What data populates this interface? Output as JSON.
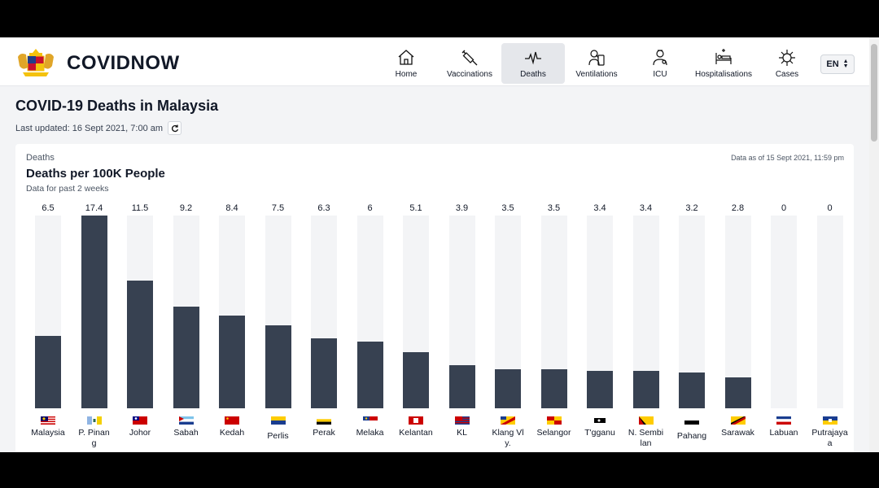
{
  "app": {
    "brand": "COVIDNOW",
    "language": "EN"
  },
  "nav": [
    {
      "label": "Home",
      "icon": "home-icon",
      "active": false
    },
    {
      "label": "Vaccinations",
      "icon": "syringe-icon",
      "active": false
    },
    {
      "label": "Deaths",
      "icon": "pulse-icon",
      "active": true
    },
    {
      "label": "Ventilations",
      "icon": "ventilator-icon",
      "active": false
    },
    {
      "label": "ICU",
      "icon": "icu-icon",
      "active": false
    },
    {
      "label": "Hospitalisations",
      "icon": "hospital-bed-icon",
      "active": false
    },
    {
      "label": "Cases",
      "icon": "virus-icon",
      "active": false
    }
  ],
  "page": {
    "title": "COVID-19 Deaths in Malaysia",
    "last_updated": "Last updated: 16 Sept 2021, 7:00 am"
  },
  "card": {
    "subtitle": "Deaths",
    "title": "Deaths per 100K People",
    "note": "Data for past 2 weeks",
    "as_of": "Data as of 15 Sept 2021, 11:59 pm"
  },
  "chart_data": {
    "type": "bar",
    "categories": [
      "Malaysia",
      "P. Pinang",
      "Johor",
      "Sabah",
      "Kedah",
      "Perlis",
      "Perak",
      "Melaka",
      "Kelantan",
      "KL",
      "Klang Valley",
      "Selangor",
      "T'ganu",
      "N. Sembilan",
      "Pahang",
      "Sarawak",
      "Labuan",
      "Putrajaya"
    ],
    "labels": [
      "Malaysia",
      "P. Pinan g",
      "Johor",
      "Sabah",
      "Kedah",
      "Perlis",
      "Perak",
      "Melaka",
      "Kelantan",
      "KL",
      "Klang Vl y.",
      "Selangor",
      "T'gganu",
      "N. Sembi lan",
      "Pahang",
      "Sarawak",
      "Labuan",
      "Putrajaya a"
    ],
    "values": [
      6.5,
      17.4,
      11.5,
      9.2,
      8.4,
      7.5,
      6.3,
      6,
      5.1,
      3.9,
      3.5,
      3.5,
      3.4,
      3.4,
      3.2,
      2.8,
      0,
      0
    ],
    "value_labels": [
      "6.5",
      "17.4",
      "11.5",
      "9.2",
      "8.4",
      "7.5",
      "6.3",
      "6",
      "5.1",
      "3.9",
      "3.5",
      "3.5",
      "3.4",
      "3.4",
      "3.2",
      "2.8",
      "0",
      "0"
    ],
    "ylim": [
      0,
      17.4
    ],
    "title": "Deaths per 100K People"
  },
  "colors": {
    "bar": "#374151",
    "track": "#f3f4f6",
    "active_nav": "#e5e7eb"
  }
}
